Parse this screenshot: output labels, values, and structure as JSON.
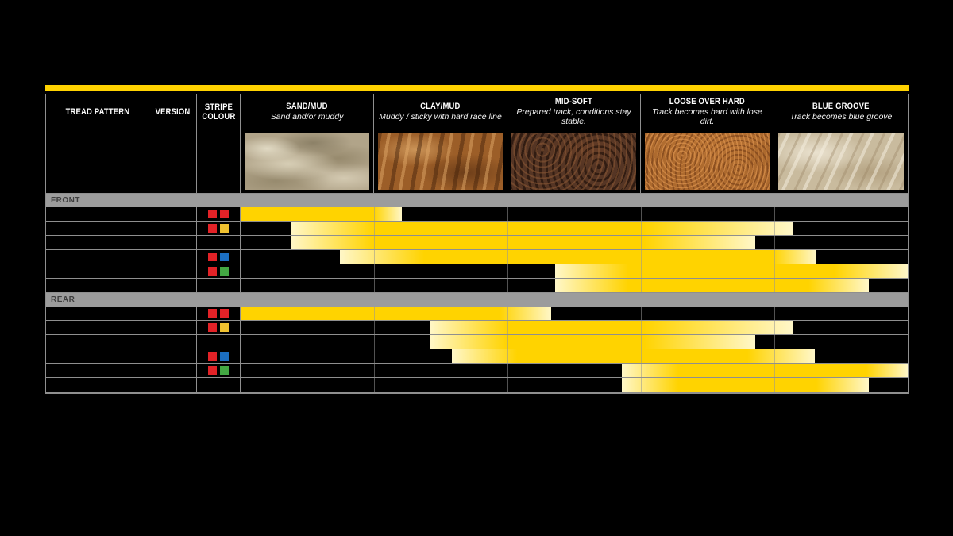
{
  "page": {
    "background": "#000000"
  },
  "colors": {
    "accent_yellow": "#FFD200",
    "bar_solid": "#FFD300",
    "bar_pale": "#FFF7C8",
    "grid_line": "#8F8F8F",
    "section_bar": "#9C9C9C",
    "section_text": "#3E3E3E",
    "stripe_red": "#E32227",
    "stripe_yellow": "#F0C12F",
    "stripe_blue": "#1B6EC1",
    "stripe_green": "#43A843"
  },
  "header": {
    "columns": [
      {
        "label": "TREAD PATTERN",
        "sublabel": ""
      },
      {
        "label": "VERSION",
        "sublabel": ""
      },
      {
        "label": "STRIPE COLOUR",
        "sublabel": ""
      },
      {
        "label": "SAND/MUD",
        "sublabel": "Sand and/or muddy"
      },
      {
        "label": "CLAY/MUD",
        "sublabel": "Muddy / sticky with hard race line"
      },
      {
        "label": "MID-SOFT",
        "sublabel": "Prepared track, conditions stay stable."
      },
      {
        "label": "LOOSE OVER HARD",
        "sublabel": "Track becomes hard with lose dirt."
      },
      {
        "label": "BLUE GROOVE",
        "sublabel": "Track becomes blue groove"
      }
    ]
  },
  "photos": [
    {
      "name": "sand-terrain-photo",
      "texture": "sand"
    },
    {
      "name": "clay-mud-terrain-photo",
      "texture": "clay"
    },
    {
      "name": "mid-soft-terrain-photo",
      "texture": "midsoft"
    },
    {
      "name": "loose-over-hard-terrain-photo",
      "texture": "loose"
    },
    {
      "name": "blue-groove-terrain-photo",
      "texture": "bluegroove"
    }
  ],
  "sections": [
    {
      "label": "FRONT",
      "rows": [
        {
          "tread_pattern": "",
          "version": "",
          "stripes": [
            "red",
            "red"
          ],
          "bar": {
            "start": 0,
            "solid_from": 0,
            "fade_from": 168,
            "end": 203
          }
        },
        {
          "tread_pattern": "",
          "version": "",
          "stripes": [
            "red",
            "yellow"
          ],
          "bar": {
            "start": 63,
            "solid_from": 168,
            "fade_from": 508,
            "end": 695
          }
        },
        {
          "tread_pattern": "",
          "version": "",
          "stripes": [],
          "bar": {
            "start": 63,
            "solid_from": 168,
            "fade_from": 508,
            "end": 648
          }
        },
        {
          "tread_pattern": "",
          "version": "",
          "stripes": [
            "red",
            "blue"
          ],
          "bar": {
            "start": 125,
            "solid_from": 231,
            "fade_from": 671,
            "end": 725
          }
        },
        {
          "tread_pattern": "",
          "version": "",
          "stripes": [
            "red",
            "green"
          ],
          "bar": {
            "start": 396,
            "solid_from": 488,
            "fade_from": 748,
            "end": 840
          }
        },
        {
          "tread_pattern": "",
          "version": "",
          "stripes": [],
          "bar": {
            "start": 396,
            "solid_from": 488,
            "fade_from": 715,
            "end": 791
          }
        }
      ]
    },
    {
      "label": "REAR",
      "rows": [
        {
          "tread_pattern": "",
          "version": "",
          "stripes": [
            "red",
            "red"
          ],
          "bar": {
            "start": 0,
            "solid_from": 0,
            "fade_from": 326,
            "end": 391
          }
        },
        {
          "tread_pattern": "",
          "version": "",
          "stripes": [
            "red",
            "yellow"
          ],
          "bar": {
            "start": 238,
            "solid_from": 336,
            "fade_from": 508,
            "end": 695
          }
        },
        {
          "tread_pattern": "",
          "version": "",
          "stripes": [],
          "bar": {
            "start": 238,
            "solid_from": 336,
            "fade_from": 508,
            "end": 648
          }
        },
        {
          "tread_pattern": "",
          "version": "",
          "stripes": [
            "red",
            "blue"
          ],
          "bar": {
            "start": 266,
            "solid_from": 348,
            "fade_from": 638,
            "end": 723
          }
        },
        {
          "tread_pattern": "",
          "version": "",
          "stripes": [
            "red",
            "green"
          ],
          "bar": {
            "start": 480,
            "solid_from": 551,
            "fade_from": 788,
            "end": 840
          }
        },
        {
          "tread_pattern": "",
          "version": "",
          "stripes": [],
          "bar": {
            "start": 480,
            "solid_from": 551,
            "fade_from": 725,
            "end": 791
          }
        }
      ]
    }
  ],
  "chart_data": {
    "type": "bar",
    "subtype": "horizontal-suitability-range",
    "title": "",
    "categories": [
      "SAND/MUD",
      "CLAY/MUD",
      "MID-SOFT",
      "LOOSE OVER HARD",
      "BLUE GROOVE"
    ],
    "axis_note": "range values in terrain-column units, 0 = left edge of SAND/MUD, 5 = right edge of BLUE GROOVE",
    "xlim": [
      0,
      5
    ],
    "series": [
      {
        "section": "FRONT",
        "row": 1,
        "stripe_colours": [
          "red",
          "red"
        ],
        "range": [
          0.0,
          1.21
        ]
      },
      {
        "section": "FRONT",
        "row": 2,
        "stripe_colours": [
          "red",
          "yellow"
        ],
        "range": [
          0.38,
          4.14
        ]
      },
      {
        "section": "FRONT",
        "row": 3,
        "stripe_colours": [],
        "range": [
          0.38,
          3.86
        ]
      },
      {
        "section": "FRONT",
        "row": 4,
        "stripe_colours": [
          "red",
          "blue"
        ],
        "range": [
          0.74,
          4.32
        ]
      },
      {
        "section": "FRONT",
        "row": 5,
        "stripe_colours": [
          "red",
          "green"
        ],
        "range": [
          2.36,
          5.0
        ]
      },
      {
        "section": "FRONT",
        "row": 6,
        "stripe_colours": [],
        "range": [
          2.36,
          4.71
        ]
      },
      {
        "section": "REAR",
        "row": 1,
        "stripe_colours": [
          "red",
          "red"
        ],
        "range": [
          0.0,
          2.33
        ]
      },
      {
        "section": "REAR",
        "row": 2,
        "stripe_colours": [
          "red",
          "yellow"
        ],
        "range": [
          1.42,
          4.14
        ]
      },
      {
        "section": "REAR",
        "row": 3,
        "stripe_colours": [],
        "range": [
          1.42,
          3.86
        ]
      },
      {
        "section": "REAR",
        "row": 4,
        "stripe_colours": [
          "red",
          "blue"
        ],
        "range": [
          1.58,
          4.3
        ]
      },
      {
        "section": "REAR",
        "row": 5,
        "stripe_colours": [
          "red",
          "green"
        ],
        "range": [
          2.86,
          5.0
        ]
      },
      {
        "section": "REAR",
        "row": 6,
        "stripe_colours": [],
        "range": [
          2.86,
          4.71
        ]
      }
    ]
  }
}
